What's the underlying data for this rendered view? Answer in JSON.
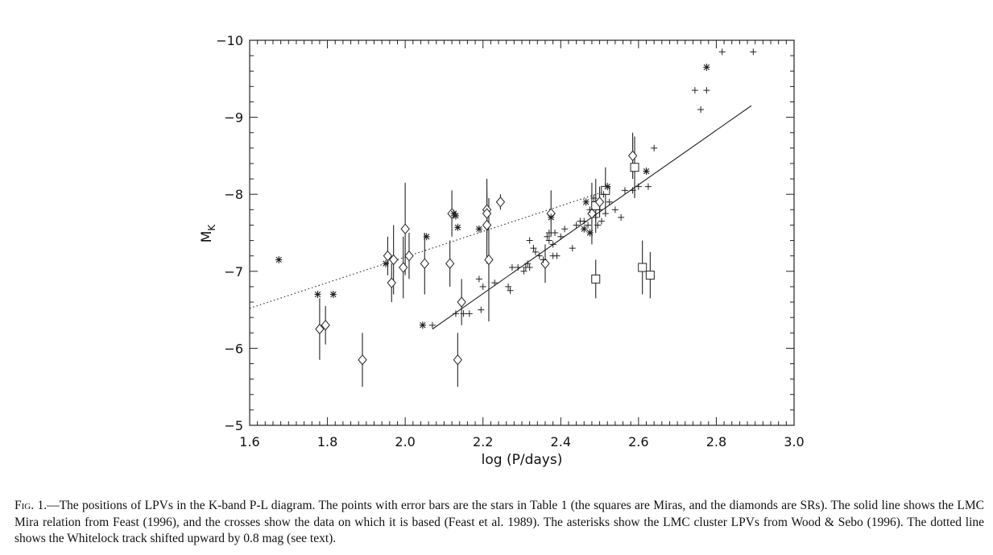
{
  "chart_data": {
    "type": "scatter",
    "xlabel": "log (P/days)",
    "ylabel": "M",
    "ylabel_sub": "K",
    "xlim": [
      1.6,
      3.0
    ],
    "ylim": [
      -5,
      -10
    ],
    "y_inverted": true,
    "x_ticks": [
      1.6,
      1.8,
      2.0,
      2.2,
      2.4,
      2.6,
      2.8,
      3.0
    ],
    "x_tick_labels": [
      "1.6",
      "1.8",
      "2.0",
      "2.2",
      "2.4",
      "2.6",
      "2.8",
      "3.0"
    ],
    "y_ticks": [
      -10,
      -9,
      -8,
      -7,
      -6,
      -5
    ],
    "y_tick_labels": [
      "−10",
      "−9",
      "−8",
      "−7",
      "−6",
      "−5"
    ],
    "grid": false,
    "series": [
      {
        "marker": "square",
        "points": [
          [
            2.49,
            -7.85,
            0.35
          ],
          [
            2.515,
            -8.05,
            0.3
          ],
          [
            2.59,
            -8.35,
            0.4
          ],
          [
            2.49,
            -6.9,
            0.25
          ],
          [
            2.61,
            -7.05,
            0.35
          ],
          [
            2.63,
            -6.95,
            0.3
          ]
        ]
      },
      {
        "marker": "diamond",
        "points": [
          [
            1.78,
            -6.25,
            0.4
          ],
          [
            1.795,
            -6.3,
            0.25
          ],
          [
            1.89,
            -5.85,
            0.35
          ],
          [
            1.955,
            -7.2,
            0.25
          ],
          [
            1.965,
            -6.85,
            0.25
          ],
          [
            1.97,
            -7.15,
            0.45
          ],
          [
            1.995,
            -7.05,
            0.4
          ],
          [
            2.0,
            -7.55,
            0.6
          ],
          [
            2.01,
            -7.2,
            0.3
          ],
          [
            2.05,
            -7.1,
            0.4
          ],
          [
            2.115,
            -7.1,
            0.3
          ],
          [
            2.12,
            -7.75,
            0.3
          ],
          [
            2.135,
            -5.85,
            0.35
          ],
          [
            2.145,
            -6.6,
            0.3
          ],
          [
            2.21,
            -7.8,
            0.4
          ],
          [
            2.21,
            -7.6,
            0.5
          ],
          [
            2.21,
            -7.75,
            0.25
          ],
          [
            2.215,
            -7.15,
            0.8
          ],
          [
            2.245,
            -7.9,
            0.1
          ],
          [
            2.36,
            -7.1,
            0.25
          ],
          [
            2.375,
            -7.75,
            0.3
          ],
          [
            2.48,
            -7.75,
            0.4
          ],
          [
            2.5,
            -7.9,
            0.2
          ],
          [
            2.585,
            -8.5,
            0.3
          ]
        ]
      },
      {
        "marker": "plus",
        "points": [
          [
            2.07,
            -6.3
          ],
          [
            2.13,
            -6.45
          ],
          [
            2.15,
            -6.45
          ],
          [
            2.165,
            -6.45
          ],
          [
            2.19,
            -6.9
          ],
          [
            2.195,
            -6.5
          ],
          [
            2.2,
            -6.8
          ],
          [
            2.23,
            -6.85
          ],
          [
            2.265,
            -6.8
          ],
          [
            2.27,
            -6.75
          ],
          [
            2.275,
            -7.05
          ],
          [
            2.29,
            -7.05
          ],
          [
            2.305,
            -7.0
          ],
          [
            2.31,
            -7.05
          ],
          [
            2.315,
            -7.1
          ],
          [
            2.32,
            -7.05
          ],
          [
            2.32,
            -7.4
          ],
          [
            2.33,
            -7.3
          ],
          [
            2.335,
            -7.25
          ],
          [
            2.345,
            -7.2
          ],
          [
            2.355,
            -7.15
          ],
          [
            2.365,
            -7.45
          ],
          [
            2.37,
            -7.4
          ],
          [
            2.37,
            -7.5
          ],
          [
            2.38,
            -7.2
          ],
          [
            2.38,
            -7.35
          ],
          [
            2.385,
            -7.5
          ],
          [
            2.39,
            -7.2
          ],
          [
            2.4,
            -7.45
          ],
          [
            2.41,
            -7.55
          ],
          [
            2.43,
            -7.3
          ],
          [
            2.44,
            -7.6
          ],
          [
            2.45,
            -7.65
          ],
          [
            2.46,
            -7.65
          ],
          [
            2.47,
            -7.6
          ],
          [
            2.475,
            -7.5
          ],
          [
            2.475,
            -7.8
          ],
          [
            2.485,
            -7.95
          ],
          [
            2.49,
            -7.7
          ],
          [
            2.495,
            -7.6
          ],
          [
            2.5,
            -7.8
          ],
          [
            2.505,
            -7.65
          ],
          [
            2.51,
            -8.0
          ],
          [
            2.515,
            -7.75
          ],
          [
            2.525,
            -7.9
          ],
          [
            2.54,
            -7.8
          ],
          [
            2.555,
            -7.7
          ],
          [
            2.565,
            -8.05
          ],
          [
            2.585,
            -8.05
          ],
          [
            2.6,
            -8.1
          ],
          [
            2.625,
            -8.1
          ],
          [
            2.64,
            -8.6
          ],
          [
            2.745,
            -9.35
          ],
          [
            2.76,
            -9.1
          ],
          [
            2.775,
            -9.35
          ],
          [
            2.815,
            -9.85
          ],
          [
            2.895,
            -9.85
          ]
        ]
      },
      {
        "marker": "asterisk",
        "points": [
          [
            1.675,
            -7.15
          ],
          [
            1.775,
            -6.7
          ],
          [
            1.815,
            -6.7
          ],
          [
            1.95,
            -7.1
          ],
          [
            2.045,
            -6.3
          ],
          [
            2.055,
            -7.45
          ],
          [
            2.125,
            -7.75
          ],
          [
            2.13,
            -7.72
          ],
          [
            2.135,
            -7.57
          ],
          [
            2.19,
            -7.55
          ],
          [
            2.375,
            -7.7
          ],
          [
            2.46,
            -7.55
          ],
          [
            2.465,
            -7.9
          ],
          [
            2.475,
            -7.5
          ],
          [
            2.52,
            -8.1
          ],
          [
            2.62,
            -8.3
          ],
          [
            2.775,
            -9.65
          ]
        ]
      }
    ],
    "lines": [
      {
        "style": "solid",
        "x": [
          2.07,
          2.89
        ],
        "y": [
          -6.25,
          -9.15
        ]
      },
      {
        "style": "dotted",
        "x": [
          1.6,
          2.52
        ],
        "y": [
          -6.52,
          -8.05
        ]
      }
    ]
  },
  "caption": {
    "fig_label": "Fig. 1.",
    "text": "—The positions of LPVs in the K-band P-L diagram. The points with error bars are the stars in Table 1 (the squares are Miras, and the diamonds are SRs). The solid line shows the LMC Mira relation from Feast (1996), and the crosses show the data on which it is based (Feast et al. 1989). The asterisks show the LMC cluster LPVs from Wood & Sebo (1996). The dotted line shows the Whitelock track shifted upward by 0.8 mag (see text)."
  }
}
